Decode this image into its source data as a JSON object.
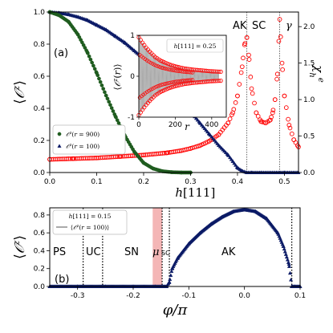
{
  "chart_data": [
    {
      "panel": "(a)",
      "type": "scatter",
      "xlabel": "h[111]",
      "ylabel": "⟨O^z⟩",
      "y2label": "χ_h^e",
      "xlim": [
        0,
        0.53
      ],
      "ylim": [
        0,
        1.0
      ],
      "y2lim": [
        0,
        2.2
      ],
      "x_ticks": [
        "0.0",
        "0.1",
        "0.2",
        "0.3",
        "0.4",
        "0.5"
      ],
      "y_ticks": [
        "0.0",
        "0.2",
        "0.4",
        "0.6",
        "0.8",
        "1.0"
      ],
      "y2_ticks": [
        "0.0",
        "0.5",
        "1.0",
        "1.5",
        "2.0"
      ],
      "regions": [
        {
          "label": "AK",
          "from": 0.38,
          "to": 0.42
        },
        {
          "label": "SC",
          "from": 0.42,
          "to": 0.49
        },
        {
          "label": "γ",
          "from": 0.49,
          "to": 0.53
        }
      ],
      "vlines": [
        0.42,
        0.49
      ],
      "series": [
        {
          "name": "O^z(r = 900)",
          "color": "#1f5c1f",
          "marker": "circle",
          "axis": "left",
          "x": [
            0.0,
            0.02,
            0.04,
            0.06,
            0.08,
            0.1,
            0.12,
            0.14,
            0.16,
            0.18,
            0.2,
            0.22,
            0.24,
            0.26,
            0.28,
            0.3
          ],
          "y": [
            1.0,
            0.98,
            0.94,
            0.86,
            0.75,
            0.62,
            0.48,
            0.35,
            0.23,
            0.13,
            0.06,
            0.025,
            0.008,
            0.002,
            0.0,
            0.0
          ]
        },
        {
          "name": "O^z(r = 100)",
          "color": "#0b1a66",
          "marker": "triangle",
          "axis": "left",
          "x": [
            0.0,
            0.02,
            0.04,
            0.06,
            0.08,
            0.1,
            0.12,
            0.14,
            0.16,
            0.18,
            0.2,
            0.22,
            0.24,
            0.26,
            0.28,
            0.3,
            0.32,
            0.34,
            0.36,
            0.38,
            0.39,
            0.4,
            0.41,
            0.42,
            0.43,
            0.45,
            0.5,
            0.53
          ],
          "y": [
            1.0,
            0.995,
            0.985,
            0.97,
            0.95,
            0.92,
            0.89,
            0.85,
            0.81,
            0.76,
            0.71,
            0.65,
            0.59,
            0.52,
            0.45,
            0.38,
            0.31,
            0.24,
            0.17,
            0.11,
            0.07,
            0.03,
            0.01,
            0.0,
            0.0,
            0.0,
            0.0,
            0.0
          ]
        },
        {
          "name": "χ_h^e",
          "color": "#ff0000",
          "marker": "circle",
          "axis": "right",
          "x": [
            0.0,
            0.05,
            0.1,
            0.15,
            0.2,
            0.25,
            0.28,
            0.3,
            0.32,
            0.34,
            0.36,
            0.38,
            0.39,
            0.4,
            0.41,
            0.415,
            0.42,
            0.425,
            0.43,
            0.44,
            0.45,
            0.46,
            0.47,
            0.475,
            0.48,
            0.485,
            0.49,
            0.495,
            0.5,
            0.51,
            0.52,
            0.53
          ],
          "y": [
            0.18,
            0.19,
            0.2,
            0.22,
            0.24,
            0.27,
            0.3,
            0.33,
            0.37,
            0.43,
            0.52,
            0.68,
            0.82,
            1.05,
            1.45,
            1.75,
            1.85,
            1.55,
            1.15,
            0.82,
            0.7,
            0.68,
            0.72,
            0.82,
            1.0,
            1.35,
            2.1,
            1.5,
            1.05,
            0.65,
            0.45,
            0.35
          ]
        }
      ],
      "inset": {
        "xlabel": "r",
        "ylabel": "⟨O^z(r)⟩",
        "xlim": [
          0,
          480
        ],
        "ylim": [
          -1,
          1
        ],
        "x_ticks": [
          "0",
          "200",
          "400"
        ],
        "y_ticks": [
          "-1",
          "0",
          "1"
        ],
        "annotation": "h[111] = 0.25",
        "envelope_r": [
          0,
          20,
          40,
          60,
          90,
          120,
          160,
          200,
          250,
          300,
          350,
          400,
          450
        ],
        "envelope_amp": [
          0.95,
          0.82,
          0.7,
          0.6,
          0.47,
          0.38,
          0.3,
          0.24,
          0.19,
          0.16,
          0.14,
          0.12,
          0.11
        ]
      }
    },
    {
      "panel": "(b)",
      "type": "scatter",
      "xlabel": "φ/π",
      "ylabel": "⟨O^z⟩",
      "xlim": [
        -0.35,
        0.1
      ],
      "ylim": [
        0,
        0.88
      ],
      "x_ticks": [
        "-0.3",
        "-0.2",
        "-0.1",
        "0.0",
        "0.1"
      ],
      "y_ticks": [
        "0.0",
        "0.2",
        "0.4",
        "0.6",
        "0.8"
      ],
      "legend_title": "h[111] = 0.15",
      "regions": [
        {
          "label": "PS",
          "from": -0.35,
          "to": -0.29
        },
        {
          "label": "UC",
          "from": -0.29,
          "to": -0.255
        },
        {
          "label": "SN",
          "from": -0.255,
          "to": -0.165
        },
        {
          "label": "μ",
          "from": -0.165,
          "to": -0.148
        },
        {
          "label": "SC",
          "from": -0.148,
          "to": -0.135
        },
        {
          "label": "AK",
          "from": -0.135,
          "to": 0.085
        }
      ],
      "vlines": [
        -0.29,
        -0.255,
        -0.148,
        -0.135,
        0.085
      ],
      "shaded_band": [
        -0.165,
        -0.148
      ],
      "shade_color": "#f4b6b6",
      "series": [
        {
          "name": "⟨O^z(r = 100)⟩",
          "color": "#0b1a66",
          "marker": "triangle",
          "x": [
            -0.35,
            -0.3,
            -0.25,
            -0.2,
            -0.16,
            -0.14,
            -0.135,
            -0.13,
            -0.12,
            -0.1,
            -0.08,
            -0.06,
            -0.04,
            -0.02,
            0.0,
            0.02,
            0.04,
            0.06,
            0.07,
            0.08,
            0.085,
            0.09,
            0.1
          ],
          "y": [
            0.0,
            0.0,
            0.0,
            0.0,
            0.0,
            0.0,
            0.05,
            0.2,
            0.32,
            0.48,
            0.6,
            0.7,
            0.78,
            0.84,
            0.86,
            0.84,
            0.76,
            0.6,
            0.45,
            0.25,
            0.0,
            0.0,
            0.0
          ]
        }
      ]
    }
  ]
}
